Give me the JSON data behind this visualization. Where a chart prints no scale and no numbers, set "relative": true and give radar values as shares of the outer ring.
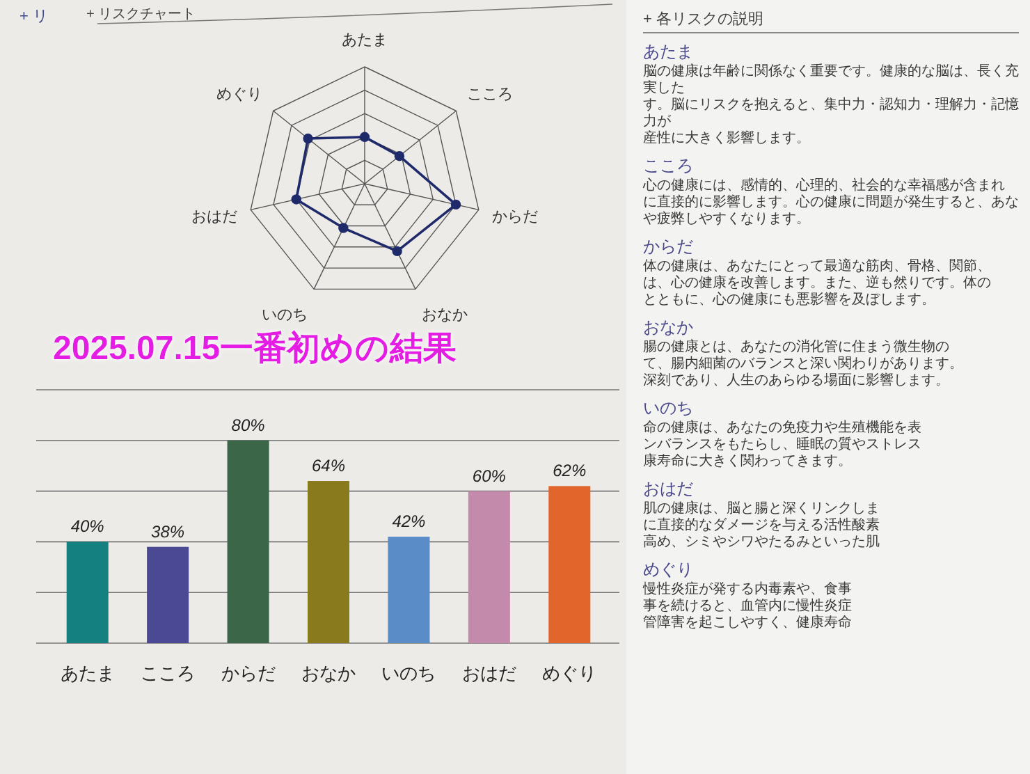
{
  "chart_data": [
    {
      "type": "radar",
      "title": "+ リスクチャート",
      "annotations": [
        "+ リ"
      ],
      "categories": [
        "あたま",
        "こころ",
        "からだ",
        "おなか",
        "いのち",
        "おはだ",
        "めぐり"
      ],
      "relative": true,
      "series": [
        {
          "color": "#1f2a6b",
          "values": [
            0.4,
            0.38,
            0.8,
            0.64,
            0.42,
            0.6,
            0.62
          ]
        }
      ],
      "marker": "circle",
      "grid": true
    },
    {
      "type": "bar",
      "title": "2025.07.15一番初めの結果",
      "categories": [
        "あたま",
        "こころ",
        "からだ",
        "おなか",
        "いのち",
        "おはだ",
        "めぐり"
      ],
      "values": [
        40,
        38,
        80,
        64,
        42,
        60,
        62
      ],
      "colors": [
        "#14807f",
        "#4b4894",
        "#3b6648",
        "#8a7a1e",
        "#5a8cc8",
        "#c48aab",
        "#e2662c"
      ],
      "value_labels": [
        "40%",
        "38%",
        "80%",
        "64%",
        "42%",
        "60%",
        "62%"
      ],
      "ylim": [
        0,
        100
      ],
      "yticks": [
        {
          "value": 0,
          "label": null
        },
        {
          "value": 20,
          "label": null
        },
        {
          "value": 40,
          "label": null
        },
        {
          "value": 60,
          "label": null
        },
        {
          "value": 80,
          "label": null
        },
        {
          "value": 100,
          "label": null
        }
      ],
      "grid": "y",
      "tick_labels": "x"
    },
    {
      "type": "other",
      "title": "+ 各リスクの説明"
    },
    {
      "type": "other",
      "title": "あたま",
      "annotations": [
        "脳の健康は年齢に関係なく重要です。健康的な脳は、長く充実した",
        "す。脳にリスクを抱えると、集中力・認知力・理解力・記憶力が",
        "産性に大きく影響します。"
      ]
    },
    {
      "type": "other",
      "title": "こころ",
      "annotations": [
        "心の健康には、感情的、心理的、社会的な幸福感が含まれ",
        "に直接的に影響します。心の健康に問題が発生すると、あな",
        "や疲弊しやすくなります。"
      ]
    },
    {
      "type": "other",
      "title": "からだ",
      "annotations": [
        "体の健康は、あなたにとって最適な筋肉、骨格、関節、",
        "は、心の健康を改善します。また、逆も然りです。体の",
        "とともに、心の健康にも悪影響を及ぼします。"
      ]
    },
    {
      "type": "other",
      "title": "おなか",
      "annotations": [
        "腸の健康とは、あなたの消化管に住まう微生物の",
        "て、腸内細菌のバランスと深い関わりがあります。",
        "深刻であり、人生のあらゆる場面に影響します。"
      ]
    },
    {
      "type": "other",
      "title": "いのち",
      "annotations": [
        "命の健康は、あなたの免疫力や生殖機能を表",
        "ンバランスをもたらし、睡眠の質やストレス",
        "康寿命に大きく関わってきます。"
      ]
    },
    {
      "type": "other",
      "title": "おはだ",
      "annotations": [
        "肌の健康は、脳と腸と深くリンクしま",
        "に直接的なダメージを与える活性酸素",
        "高め、シミやシワやたるみといった肌"
      ]
    },
    {
      "type": "other",
      "title": "めぐり",
      "annotations": [
        "慢性炎症が発する内毒素や、食事",
        "事を続けると、血管内に慢性炎症",
        "管障害を起こしやすく、健康寿命"
      ]
    }
  ]
}
